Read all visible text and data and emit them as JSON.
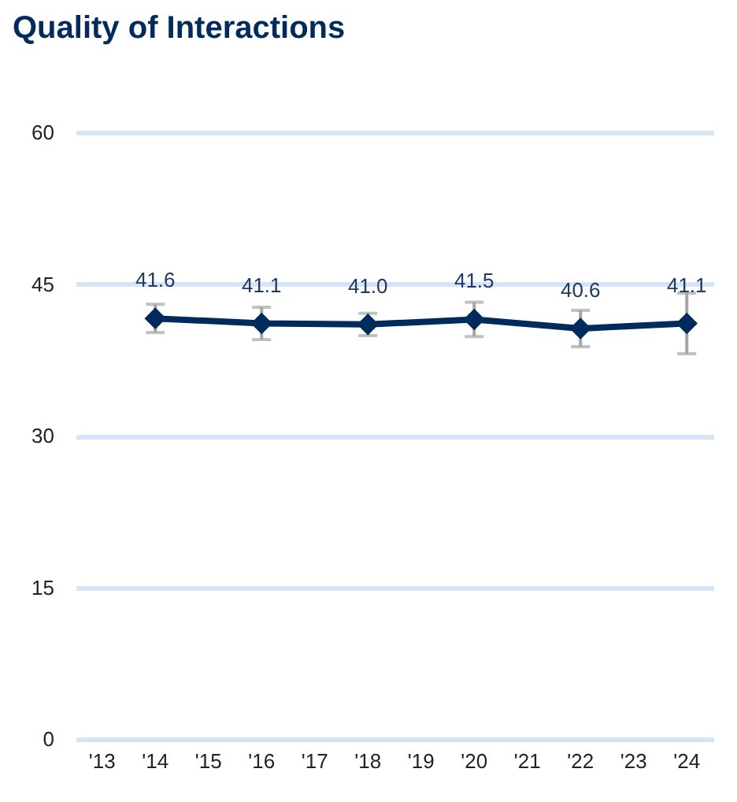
{
  "chart_data": {
    "type": "line",
    "title": "Quality of Interactions",
    "categories": [
      "'13",
      "'14",
      "'15",
      "'16",
      "'17",
      "'18",
      "'19",
      "'20",
      "'21",
      "'22",
      "'23",
      "'24"
    ],
    "series": [
      {
        "x": [
          "'14",
          "'16",
          "'18",
          "'20",
          "'22",
          "'24"
        ],
        "color": "#002b5c",
        "values": [
          41.6,
          41.1,
          41.0,
          41.5,
          40.6,
          41.1
        ],
        "value_labels": [
          "41.6",
          "41.1",
          "41.0",
          "41.5",
          "40.6",
          "41.1"
        ],
        "errors": [
          1.4,
          1.6,
          1.1,
          1.7,
          1.8,
          3.0
        ]
      }
    ],
    "ylim": [
      0,
      60
    ],
    "yticks": [
      0,
      15,
      30,
      45,
      60
    ],
    "grid": "y",
    "marker": "diamond",
    "line_style": "solid"
  }
}
